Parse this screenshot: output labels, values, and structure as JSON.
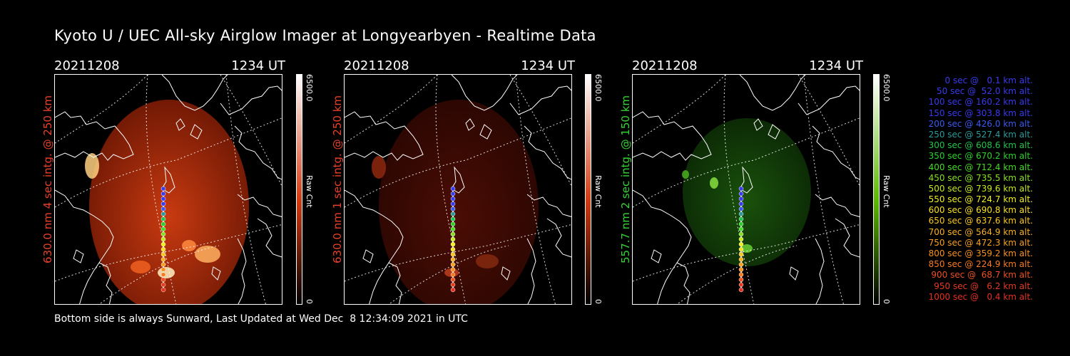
{
  "title": "Kyoto U / UEC All-sky Airglow Imager at Longyearbyen - Realtime Data",
  "panels": [
    {
      "date": "20211208",
      "time": "1234 UT",
      "ylabel": "630.0 nm 4 sec intg. @ 250 km",
      "ylabel_color": "#e8402a",
      "cbar_max": "6500.0",
      "cbar_min": "0",
      "cbar_unit": "Raw Cnt",
      "cbar_color": "#d23a10",
      "glow": "red-strong"
    },
    {
      "date": "20211208",
      "time": "1234 UT",
      "ylabel": "630.0 nm 1 sec intg. @ 250 km",
      "ylabel_color": "#e8402a",
      "cbar_max": "6500.0",
      "cbar_min": "0",
      "cbar_unit": "Raw Cnt",
      "cbar_color": "#d23a10",
      "glow": "red-weak"
    },
    {
      "date": "20211208",
      "time": "1234 UT",
      "ylabel": "557.7 nm 2 sec intg. @ 150 km",
      "ylabel_color": "#35d335",
      "cbar_max": "6500.0",
      "cbar_min": "0",
      "cbar_unit": "Raw Cnt",
      "cbar_color": "#5ab800",
      "glow": "green"
    }
  ],
  "legend": [
    {
      "text": "0 sec @   0.1 km alt.",
      "color": "#3a3af0"
    },
    {
      "text": "50 sec @  52.0 km alt.",
      "color": "#3a3af0"
    },
    {
      "text": "100 sec @ 160.2 km alt.",
      "color": "#3a3af0"
    },
    {
      "text": "150 sec @ 303.8 km alt.",
      "color": "#3a3af0"
    },
    {
      "text": "200 sec @ 426.0 km alt.",
      "color": "#3a5af0"
    },
    {
      "text": "250 sec @ 527.4 km alt.",
      "color": "#2a9a9a"
    },
    {
      "text": "300 sec @ 608.6 km alt.",
      "color": "#22c34a"
    },
    {
      "text": "350 sec @ 670.2 km alt.",
      "color": "#2ad22a"
    },
    {
      "text": "400 sec @ 712.4 km alt.",
      "color": "#44dd22"
    },
    {
      "text": "450 sec @ 735.5 km alt.",
      "color": "#88e022"
    },
    {
      "text": "500 sec @ 739.6 km alt.",
      "color": "#c8e81e"
    },
    {
      "text": "550 sec @ 724.7 km alt.",
      "color": "#f0f020"
    },
    {
      "text": "600 sec @ 690.8 km alt.",
      "color": "#f8e020"
    },
    {
      "text": "650 sec @ 637.6 km alt.",
      "color": "#f8c820"
    },
    {
      "text": "700 sec @ 564.9 km alt.",
      "color": "#f8b020"
    },
    {
      "text": "750 sec @ 472.3 km alt.",
      "color": "#f8a020"
    },
    {
      "text": "800 sec @ 359.2 km alt.",
      "color": "#f89020"
    },
    {
      "text": "850 sec @ 224.9 km alt.",
      "color": "#f87a20"
    },
    {
      "text": "900 sec @  68.7 km alt.",
      "color": "#f05020"
    },
    {
      "text": "950 sec @   6.2 km alt.",
      "color": "#e83a20"
    },
    {
      "text": "1000 sec @   0.4 km alt.",
      "color": "#e83020"
    }
  ],
  "footer": "Bottom side is always Sunward, Last Updated at Wed Dec  8 12:34:09 2021 in UTC"
}
